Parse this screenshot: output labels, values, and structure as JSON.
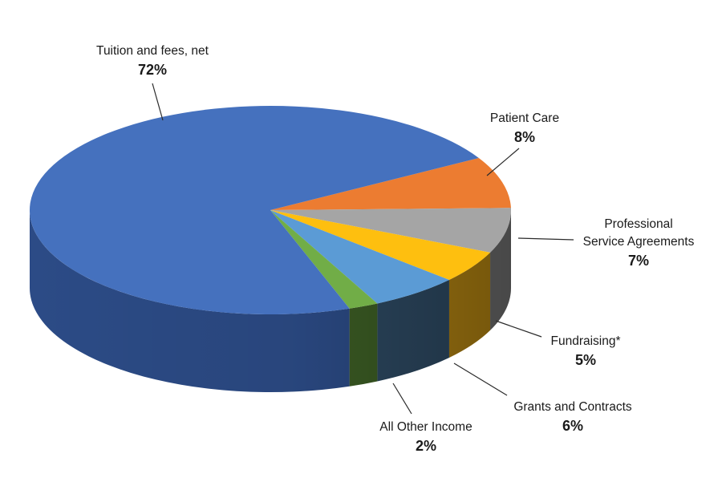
{
  "chart_data": {
    "type": "pie",
    "style": "3d",
    "title": "",
    "unit": "%",
    "slices": [
      {
        "label_lines": [
          "Tuition and fees, net"
        ],
        "value": 72,
        "value_label": "72%",
        "color": "#4571BE",
        "side_color": "#2E4F8D"
      },
      {
        "label_lines": [
          "Patient Care"
        ],
        "value": 8,
        "value_label": "8%",
        "color": "#EC7C31",
        "side_color": "#A95A22"
      },
      {
        "label_lines": [
          "Professional",
          "Service Agreements"
        ],
        "value": 7,
        "value_label": "7%",
        "color": "#A5A5A5",
        "side_color": "#6F6F6F"
      },
      {
        "label_lines": [
          "Fundraising*"
        ],
        "value": 5,
        "value_label": "5%",
        "color": "#FEBF0F",
        "side_color": "#B38412"
      },
      {
        "label_lines": [
          "Grants and Contracts"
        ],
        "value": 6,
        "value_label": "6%",
        "color": "#5B9BD5",
        "side_color": "#2F4C66"
      },
      {
        "label_lines": [
          "All Other Income"
        ],
        "value": 2,
        "value_label": "2%",
        "color": "#71AD47",
        "side_color": "#3F6226"
      }
    ]
  }
}
